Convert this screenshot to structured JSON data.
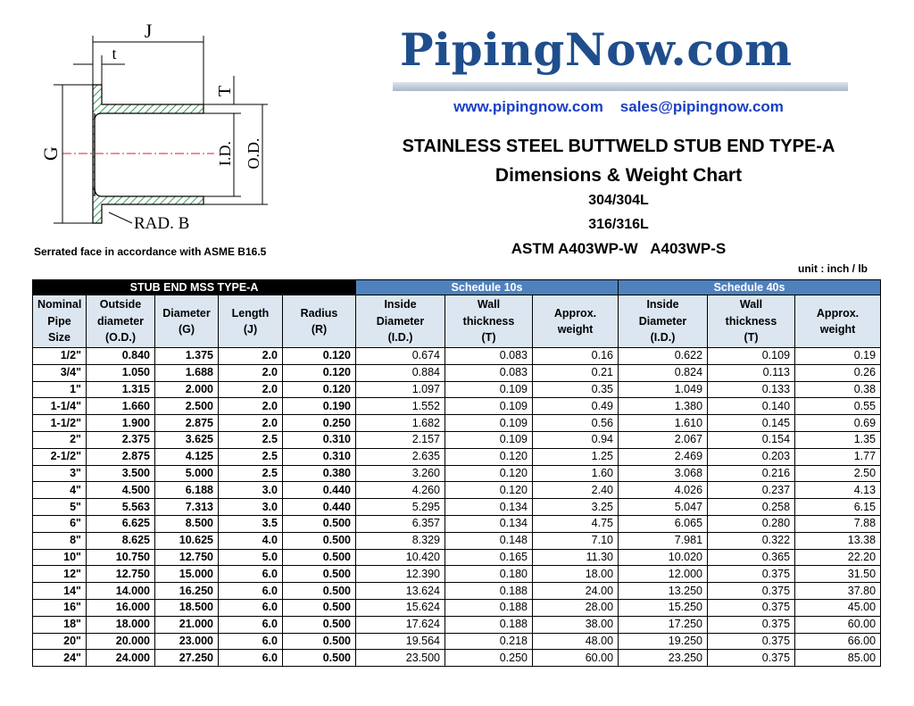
{
  "header": {
    "logo": "PipingNow.com",
    "website": "www.pipingnow.com",
    "email": "sales@pipingnow.com",
    "title": "STAINLESS STEEL BUTTWELD STUB END TYPE-A",
    "subtitle": "Dimensions & Weight Chart",
    "grades": [
      "304/304L",
      "316/316L",
      "ASTM A403WP-W   A403WP-S"
    ],
    "unit": "unit : inch / lb"
  },
  "diagram": {
    "labels": {
      "j": "J",
      "t": "t",
      "wall": "T",
      "g": "G",
      "id": "I.D.",
      "od": "O.D.",
      "rad": "RAD. B"
    },
    "caption": "Serrated face in accordance with ASME B16.5"
  },
  "table": {
    "groups": [
      "STUB END MSS TYPE-A",
      "Schedule 10s",
      "Schedule 40s"
    ],
    "columns": [
      [
        "Nominal",
        "Pipe",
        "Size"
      ],
      [
        "Outside",
        "diameter",
        "(O.D.)"
      ],
      [
        "Diameter",
        "(G)"
      ],
      [
        "Length",
        "(J)"
      ],
      [
        "Radius",
        "(R)"
      ],
      [
        "Inside",
        "Diameter",
        "(I.D.)"
      ],
      [
        "Wall",
        "thickness",
        "(T)"
      ],
      [
        "Approx.",
        "weight"
      ],
      [
        "Inside",
        "Diameter",
        "(I.D.)"
      ],
      [
        "Wall",
        "thickness",
        "(T)"
      ],
      [
        "Approx.",
        "weight"
      ]
    ],
    "rows": [
      [
        "1/2\"",
        "0.840",
        "1.375",
        "2.0",
        "0.120",
        "0.674",
        "0.083",
        "0.16",
        "0.622",
        "0.109",
        "0.19"
      ],
      [
        "3/4\"",
        "1.050",
        "1.688",
        "2.0",
        "0.120",
        "0.884",
        "0.083",
        "0.21",
        "0.824",
        "0.113",
        "0.26"
      ],
      [
        "1\"",
        "1.315",
        "2.000",
        "2.0",
        "0.120",
        "1.097",
        "0.109",
        "0.35",
        "1.049",
        "0.133",
        "0.38"
      ],
      [
        "1-1/4\"",
        "1.660",
        "2.500",
        "2.0",
        "0.190",
        "1.552",
        "0.109",
        "0.49",
        "1.380",
        "0.140",
        "0.55"
      ],
      [
        "1-1/2\"",
        "1.900",
        "2.875",
        "2.0",
        "0.250",
        "1.682",
        "0.109",
        "0.56",
        "1.610",
        "0.145",
        "0.69"
      ],
      [
        "2\"",
        "2.375",
        "3.625",
        "2.5",
        "0.310",
        "2.157",
        "0.109",
        "0.94",
        "2.067",
        "0.154",
        "1.35"
      ],
      [
        "2-1/2\"",
        "2.875",
        "4.125",
        "2.5",
        "0.310",
        "2.635",
        "0.120",
        "1.25",
        "2.469",
        "0.203",
        "1.77"
      ],
      [
        "3\"",
        "3.500",
        "5.000",
        "2.5",
        "0.380",
        "3.260",
        "0.120",
        "1.60",
        "3.068",
        "0.216",
        "2.50"
      ],
      [
        "4\"",
        "4.500",
        "6.188",
        "3.0",
        "0.440",
        "4.260",
        "0.120",
        "2.40",
        "4.026",
        "0.237",
        "4.13"
      ],
      [
        "5\"",
        "5.563",
        "7.313",
        "3.0",
        "0.440",
        "5.295",
        "0.134",
        "3.25",
        "5.047",
        "0.258",
        "6.15"
      ],
      [
        "6\"",
        "6.625",
        "8.500",
        "3.5",
        "0.500",
        "6.357",
        "0.134",
        "4.75",
        "6.065",
        "0.280",
        "7.88"
      ],
      [
        "8\"",
        "8.625",
        "10.625",
        "4.0",
        "0.500",
        "8.329",
        "0.148",
        "7.10",
        "7.981",
        "0.322",
        "13.38"
      ],
      [
        "10\"",
        "10.750",
        "12.750",
        "5.0",
        "0.500",
        "10.420",
        "0.165",
        "11.30",
        "10.020",
        "0.365",
        "22.20"
      ],
      [
        "12\"",
        "12.750",
        "15.000",
        "6.0",
        "0.500",
        "12.390",
        "0.180",
        "18.00",
        "12.000",
        "0.375",
        "31.50"
      ],
      [
        "14\"",
        "14.000",
        "16.250",
        "6.0",
        "0.500",
        "13.624",
        "0.188",
        "24.00",
        "13.250",
        "0.375",
        "37.80"
      ],
      [
        "16\"",
        "16.000",
        "18.500",
        "6.0",
        "0.500",
        "15.624",
        "0.188",
        "28.00",
        "15.250",
        "0.375",
        "45.00"
      ],
      [
        "18\"",
        "18.000",
        "21.000",
        "6.0",
        "0.500",
        "17.624",
        "0.188",
        "38.00",
        "17.250",
        "0.375",
        "60.00"
      ],
      [
        "20\"",
        "20.000",
        "23.000",
        "6.0",
        "0.500",
        "19.564",
        "0.218",
        "48.00",
        "19.250",
        "0.375",
        "66.00"
      ],
      [
        "24\"",
        "24.000",
        "27.250",
        "6.0",
        "0.500",
        "23.500",
        "0.250",
        "60.00",
        "23.250",
        "0.375",
        "85.00"
      ]
    ]
  }
}
